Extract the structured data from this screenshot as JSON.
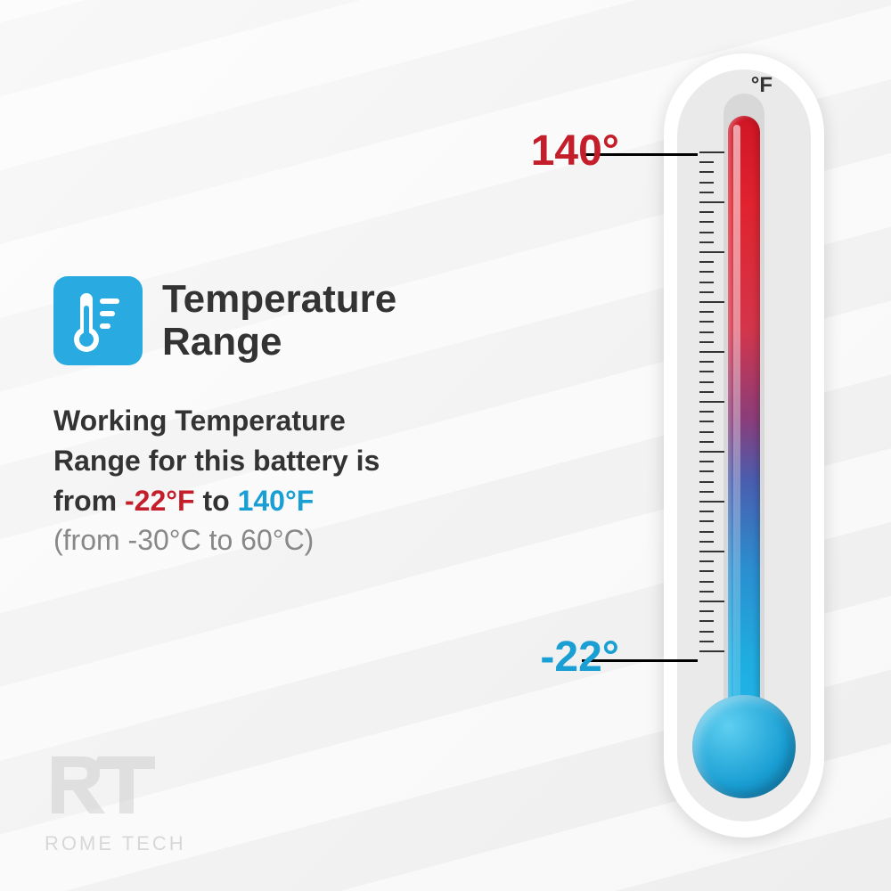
{
  "title": "Temperature Range",
  "description": {
    "line1": "Working Temperature",
    "line2": "Range for this battery is",
    "line3_prefix": "from ",
    "cold_temp": "-22°F",
    "line3_mid": " to ",
    "hot_temp": "140°F",
    "celsius": "(from -30°C to 60°C)"
  },
  "thermometer": {
    "unit": "°F",
    "high_label": "140°",
    "low_label": "-22°",
    "high_color": "#c41e2a",
    "low_color": "#1a9fd4",
    "gradient_top": "#d01525",
    "gradient_bottom": "#20b5e8",
    "tick_count_major": 10,
    "tick_count_minor": 50
  },
  "icon": {
    "bg_color": "#29abe2",
    "fg_color": "#ffffff"
  },
  "logo": {
    "initials": "RT",
    "name": "ROME TECH"
  },
  "colors": {
    "title_color": "#333333",
    "text_color": "#333333",
    "muted_color": "#888888",
    "cold_color": "#c41e2a",
    "hot_color": "#1a9fd4"
  }
}
